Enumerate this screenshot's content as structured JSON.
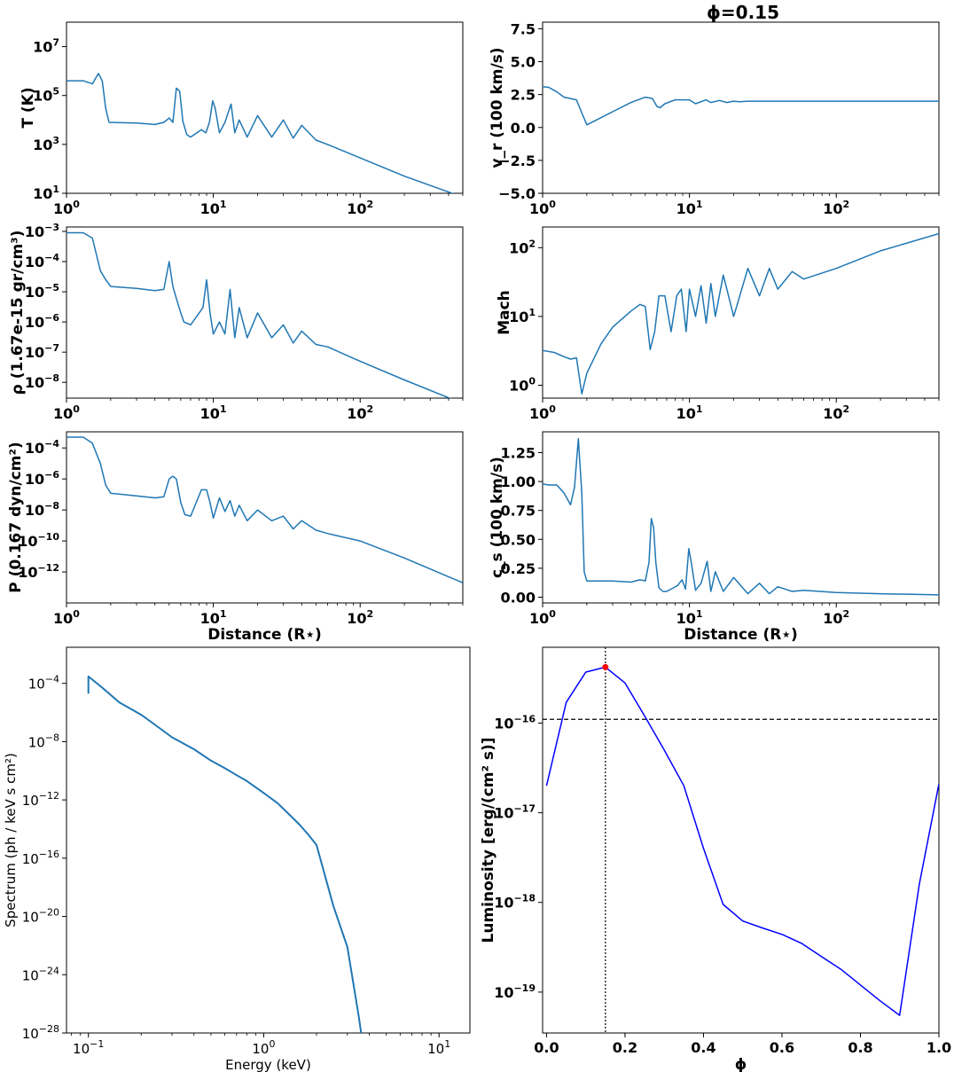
{
  "figure": {
    "title": "ϕ=0.15"
  },
  "colors": {
    "series": "#1f77b4",
    "luminosity": "#0000ff",
    "marker": "#ff0000",
    "reference": "#000000"
  },
  "chart_data": [
    {
      "id": "temperature",
      "type": "line",
      "xscale": "log",
      "yscale": "log",
      "xlim": [
        1,
        500
      ],
      "ylim": [
        10,
        100000000
      ],
      "ylabel": "T (K)",
      "xlabel": "",
      "xticks": [
        {
          "v": 1,
          "b": "10",
          "e": "0"
        },
        {
          "v": 10,
          "b": "10",
          "e": "1"
        },
        {
          "v": 100,
          "b": "10",
          "e": "2"
        }
      ],
      "yticks": [
        {
          "v": 10,
          "b": "10",
          "e": "1"
        },
        {
          "v": 1000,
          "b": "10",
          "e": "3"
        },
        {
          "v": 100000,
          "b": "10",
          "e": "5"
        },
        {
          "v": 10000000,
          "b": "10",
          "e": "7"
        }
      ],
      "x": [
        1.0,
        1.3,
        1.5,
        1.65,
        1.75,
        1.85,
        1.95,
        3,
        4,
        4.6,
        5.0,
        5.3,
        5.6,
        5.9,
        6.2,
        6.6,
        7.0,
        8.3,
        8.9,
        9.4,
        9.9,
        10.3,
        11,
        12,
        13.2,
        14,
        15,
        17,
        20,
        25,
        30,
        35,
        40,
        50,
        60,
        100,
        200,
        500
      ],
      "y": [
        400000,
        400000,
        300000,
        800000,
        400000,
        30000,
        8000,
        7500,
        6500,
        8000,
        12000,
        8000,
        200000,
        150000,
        9000,
        2500,
        2000,
        4000,
        3000,
        8000,
        60000,
        30000,
        3000,
        8000,
        45000,
        3000,
        10000,
        2000,
        15000,
        2000,
        10000,
        1800,
        6000,
        1500,
        1000,
        280,
        50,
        7
      ]
    },
    {
      "id": "velocity",
      "type": "line",
      "xscale": "log",
      "yscale": "linear",
      "xlim": [
        1,
        500
      ],
      "ylim": [
        -5.0,
        8.0
      ],
      "ylabel": "v_r (100 km/s)",
      "xlabel": "",
      "xticks": [
        {
          "v": 1,
          "b": "10",
          "e": "0"
        },
        {
          "v": 10,
          "b": "10",
          "e": "1"
        },
        {
          "v": 100,
          "b": "10",
          "e": "2"
        }
      ],
      "yticks": [
        {
          "v": -5.0,
          "t": "−5.0"
        },
        {
          "v": -2.5,
          "t": "−2.5"
        },
        {
          "v": 0.0,
          "t": "0.0"
        },
        {
          "v": 2.5,
          "t": "2.5"
        },
        {
          "v": 5.0,
          "t": "5.0"
        },
        {
          "v": 7.5,
          "t": "7.5"
        }
      ],
      "x": [
        1.0,
        1.1,
        1.25,
        1.4,
        1.55,
        1.7,
        1.85,
        2.0,
        3.0,
        4.0,
        5.0,
        5.3,
        5.6,
        6.0,
        6.3,
        6.8,
        8,
        10,
        11,
        13,
        14,
        16,
        18,
        20,
        22,
        25,
        30,
        40,
        50,
        100,
        200,
        500
      ],
      "y": [
        3.1,
        3.05,
        2.7,
        2.3,
        2.2,
        2.1,
        1.1,
        0.2,
        1.2,
        1.9,
        2.3,
        2.25,
        2.2,
        1.6,
        1.5,
        1.8,
        2.1,
        2.1,
        1.8,
        2.1,
        1.9,
        2.05,
        1.9,
        2.0,
        1.95,
        2.0,
        2.0,
        2.0,
        2.0,
        2.0,
        2.0,
        2.0
      ]
    },
    {
      "id": "density",
      "type": "line",
      "xscale": "log",
      "yscale": "log",
      "xlim": [
        1,
        500
      ],
      "ylim": [
        3e-09,
        0.0014
      ],
      "ylabel": "ρ (1.67e-15 gr/cm³)",
      "xlabel": "",
      "xticks": [
        {
          "v": 1,
          "b": "10",
          "e": "0"
        },
        {
          "v": 10,
          "b": "10",
          "e": "1"
        },
        {
          "v": 100,
          "b": "10",
          "e": "2"
        }
      ],
      "yticks": [
        {
          "v": 1e-08,
          "b": "10",
          "e": "−8"
        },
        {
          "v": 1e-07,
          "b": "10",
          "e": "−7"
        },
        {
          "v": 1e-06,
          "b": "10",
          "e": "−6"
        },
        {
          "v": 1e-05,
          "b": "10",
          "e": "−5"
        },
        {
          "v": 0.0001,
          "b": "10",
          "e": "−4"
        },
        {
          "v": 0.001,
          "b": "10",
          "e": "−3"
        }
      ],
      "x": [
        1.0,
        1.3,
        1.5,
        1.7,
        1.85,
        2.0,
        3,
        4,
        4.6,
        5.0,
        5.3,
        5.6,
        6.0,
        6.3,
        7.0,
        8.5,
        9.0,
        9.5,
        10,
        11,
        12,
        13,
        14,
        15,
        17,
        20,
        25,
        30,
        35,
        40,
        50,
        60,
        100,
        200,
        500
      ],
      "y": [
        0.0009,
        0.0009,
        0.0006,
        5e-05,
        2.5e-05,
        1.5e-05,
        1.3e-05,
        1.1e-05,
        1.2e-05,
        0.0001,
        1.5e-05,
        6e-06,
        2e-06,
        1e-06,
        8e-07,
        3e-06,
        2.5e-05,
        2e-06,
        4e-07,
        1e-06,
        4e-07,
        1.2e-05,
        3e-07,
        3e-06,
        3e-07,
        2e-06,
        3e-07,
        8e-07,
        2e-07,
        5e-07,
        1.8e-07,
        1.5e-07,
        5e-08,
        1.2e-08,
        2e-09
      ]
    },
    {
      "id": "mach",
      "type": "line",
      "xscale": "log",
      "yscale": "log",
      "xlim": [
        1,
        500
      ],
      "ylim": [
        0.65,
        200
      ],
      "ylabel": "Mach",
      "xlabel": "",
      "xticks": [
        {
          "v": 1,
          "b": "10",
          "e": "0"
        },
        {
          "v": 10,
          "b": "10",
          "e": "1"
        },
        {
          "v": 100,
          "b": "10",
          "e": "2"
        }
      ],
      "yticks": [
        {
          "v": 1,
          "b": "10",
          "e": "0"
        },
        {
          "v": 10,
          "b": "10",
          "e": "1"
        },
        {
          "v": 100,
          "b": "10",
          "e": "2"
        }
      ],
      "x": [
        1.0,
        1.2,
        1.4,
        1.55,
        1.7,
        1.85,
        2.0,
        2.5,
        3,
        4,
        4.6,
        5.0,
        5.4,
        5.8,
        6.2,
        6.8,
        7.5,
        8.2,
        8.8,
        9.5,
        10,
        11,
        12,
        13,
        14,
        15,
        17,
        20,
        25,
        30,
        35,
        40,
        50,
        60,
        100,
        200,
        500
      ],
      "y": [
        3.2,
        3.0,
        2.6,
        2.4,
        2.5,
        0.75,
        1.5,
        4.0,
        7.0,
        12.0,
        15.0,
        14.0,
        3.3,
        6.0,
        20.0,
        20.0,
        6.0,
        20.0,
        25.0,
        6.0,
        25.0,
        10.0,
        28.0,
        8.0,
        30.0,
        10.0,
        40.0,
        10.0,
        50.0,
        20.0,
        50.0,
        25.0,
        45.0,
        35.0,
        50.0,
        90.0,
        160.0
      ]
    },
    {
      "id": "pressure",
      "type": "line",
      "xscale": "log",
      "yscale": "log",
      "xlim": [
        1,
        500
      ],
      "ylim": [
        1e-14,
        0.0011
      ],
      "ylabel": "P (0.167 dyn/cm²)",
      "xlabel": "Distance (R⋆)",
      "xticks": [
        {
          "v": 1,
          "b": "10",
          "e": "0"
        },
        {
          "v": 10,
          "b": "10",
          "e": "1"
        },
        {
          "v": 100,
          "b": "10",
          "e": "2"
        }
      ],
      "yticks": [
        {
          "v": 1e-12,
          "b": "10",
          "e": "−12"
        },
        {
          "v": 1e-10,
          "b": "10",
          "e": "−10"
        },
        {
          "v": 1e-08,
          "b": "10",
          "e": "−8"
        },
        {
          "v": 1e-06,
          "b": "10",
          "e": "−6"
        },
        {
          "v": 0.0001,
          "b": "10",
          "e": "−4"
        }
      ],
      "x": [
        1.0,
        1.3,
        1.5,
        1.7,
        1.85,
        2.0,
        3,
        4,
        4.6,
        5.0,
        5.3,
        5.6,
        6.0,
        6.4,
        7.0,
        8.3,
        9.0,
        9.5,
        10,
        11,
        12,
        13,
        14,
        15,
        17,
        20,
        25,
        30,
        35,
        40,
        50,
        60,
        100,
        200,
        500
      ],
      "y": [
        0.0005,
        0.0005,
        0.0002,
        1e-05,
        4e-07,
        1.2e-07,
        8e-08,
        6e-08,
        7e-08,
        1e-06,
        1.5e-06,
        1e-06,
        3e-08,
        5e-09,
        4e-09,
        2e-07,
        2e-07,
        3e-08,
        3e-09,
        6e-08,
        8e-09,
        4e-08,
        4e-09,
        2e-08,
        2e-09,
        1e-08,
        2e-09,
        4e-09,
        6e-10,
        2e-09,
        5e-10,
        3e-10,
        1e-10,
        8e-12,
        2e-13
      ]
    },
    {
      "id": "sound-speed",
      "type": "line",
      "xscale": "log",
      "yscale": "linear",
      "xlim": [
        1,
        500
      ],
      "ylim": [
        -0.05,
        1.43
      ],
      "ylabel": "c_s (100 km/s)",
      "xlabel": "Distance (R⋆)",
      "xticks": [
        {
          "v": 1,
          "b": "10",
          "e": "0"
        },
        {
          "v": 10,
          "b": "10",
          "e": "1"
        },
        {
          "v": 100,
          "b": "10",
          "e": "2"
        }
      ],
      "yticks": [
        {
          "v": 0.0,
          "t": "0.00"
        },
        {
          "v": 0.25,
          "t": "0.25"
        },
        {
          "v": 0.5,
          "t": "0.50"
        },
        {
          "v": 0.75,
          "t": "0.75"
        },
        {
          "v": 1.0,
          "t": "1.00"
        },
        {
          "v": 1.25,
          "t": "1.25"
        }
      ],
      "x": [
        1.0,
        1.1,
        1.25,
        1.4,
        1.55,
        1.65,
        1.75,
        1.85,
        1.92,
        2.0,
        3,
        4,
        4.6,
        5.0,
        5.3,
        5.5,
        5.7,
        5.9,
        6.2,
        6.6,
        7.0,
        8.3,
        8.9,
        9.4,
        9.9,
        10.3,
        11,
        12,
        13.2,
        14,
        15,
        17,
        20,
        25,
        30,
        35,
        40,
        50,
        60,
        100,
        200,
        500
      ],
      "y": [
        0.98,
        0.97,
        0.97,
        0.9,
        0.8,
        0.95,
        1.37,
        0.9,
        0.22,
        0.14,
        0.14,
        0.13,
        0.15,
        0.14,
        0.3,
        0.68,
        0.6,
        0.3,
        0.08,
        0.05,
        0.05,
        0.1,
        0.15,
        0.07,
        0.42,
        0.3,
        0.06,
        0.12,
        0.31,
        0.05,
        0.22,
        0.05,
        0.17,
        0.03,
        0.12,
        0.03,
        0.09,
        0.05,
        0.06,
        0.04,
        0.03,
        0.02
      ]
    },
    {
      "id": "spectrum",
      "type": "line",
      "xscale": "log",
      "yscale": "log",
      "xlim": [
        0.075,
        15
      ],
      "ylim": [
        1e-28,
        0.03
      ],
      "ylabel": "Spectrum (ph / keV s cm²)",
      "xlabel": "Energy (keV)",
      "xticks": [
        {
          "v": 0.1,
          "b": "10",
          "e": "−1"
        },
        {
          "v": 1,
          "b": "10",
          "e": "0"
        },
        {
          "v": 10,
          "b": "10",
          "e": "1"
        }
      ],
      "yticks": [
        {
          "v": 1e-28,
          "b": "10",
          "e": "−28"
        },
        {
          "v": 1e-24,
          "b": "10",
          "e": "−24"
        },
        {
          "v": 1e-20,
          "b": "10",
          "e": "−20"
        },
        {
          "v": 1e-16,
          "b": "10",
          "e": "−16"
        },
        {
          "v": 1e-12,
          "b": "10",
          "e": "−12"
        },
        {
          "v": 1e-08,
          "b": "10",
          "e": "−8"
        },
        {
          "v": 0.0001,
          "b": "10",
          "e": "−4"
        }
      ],
      "x": [
        0.1,
        0.1,
        0.12,
        0.15,
        0.2,
        0.25,
        0.3,
        0.4,
        0.5,
        0.6,
        0.7,
        0.8,
        1.0,
        1.2,
        1.4,
        1.6,
        1.8,
        2.0,
        2.5,
        3.0,
        3.5,
        3.9
      ],
      "y": [
        2e-05,
        0.0003,
        5e-05,
        5e-06,
        7e-07,
        1e-07,
        2e-08,
        3e-09,
        5e-10,
        1.5e-10,
        5e-11,
        2e-11,
        3e-12,
        6e-13,
        1e-13,
        2e-14,
        4e-15,
        8e-16,
        5e-20,
        8e-23,
        1e-27,
        1e-31
      ]
    },
    {
      "id": "luminosity",
      "type": "line",
      "xscale": "linear",
      "yscale": "log",
      "xlim": [
        -0.01,
        1.0
      ],
      "ylim": [
        3.5e-20,
        7e-16
      ],
      "ylabel": "Luminosity [erg/(cm² s)]",
      "xlabel": "ϕ",
      "xticks": [
        {
          "v": 0.0,
          "t": "0.0"
        },
        {
          "v": 0.2,
          "t": "0.2"
        },
        {
          "v": 0.4,
          "t": "0.4"
        },
        {
          "v": 0.6,
          "t": "0.6"
        },
        {
          "v": 0.8,
          "t": "0.8"
        },
        {
          "v": 1.0,
          "t": "1.0"
        }
      ],
      "yticks": [
        {
          "v": 1e-19,
          "b": "10",
          "e": "−19"
        },
        {
          "v": 1e-18,
          "b": "10",
          "e": "−18"
        },
        {
          "v": 1e-17,
          "b": "10",
          "e": "−17"
        },
        {
          "v": 1e-16,
          "b": "10",
          "e": "−16"
        }
      ],
      "x": [
        0.0,
        0.05,
        0.1,
        0.15,
        0.2,
        0.25,
        0.3,
        0.35,
        0.4,
        0.45,
        0.5,
        0.55,
        0.6,
        0.65,
        0.7,
        0.75,
        0.8,
        0.85,
        0.9,
        0.95,
        1.0
      ],
      "y": [
        2e-17,
        1.7e-16,
        3.7e-16,
        4.2e-16,
        2.8e-16,
        1.2e-16,
        5e-17,
        2e-17,
        4e-18,
        9.5e-19,
        6.2e-19,
        5.2e-19,
        4.4e-19,
        3.5e-19,
        2.5e-19,
        1.8e-19,
        1.2e-19,
        8e-20,
        5.5e-20,
        1.6e-18,
        2.1e-17
      ],
      "marker": {
        "x": 0.15,
        "y": 4.2e-16
      },
      "vline": 0.15,
      "hline": 1.1e-16
    }
  ]
}
